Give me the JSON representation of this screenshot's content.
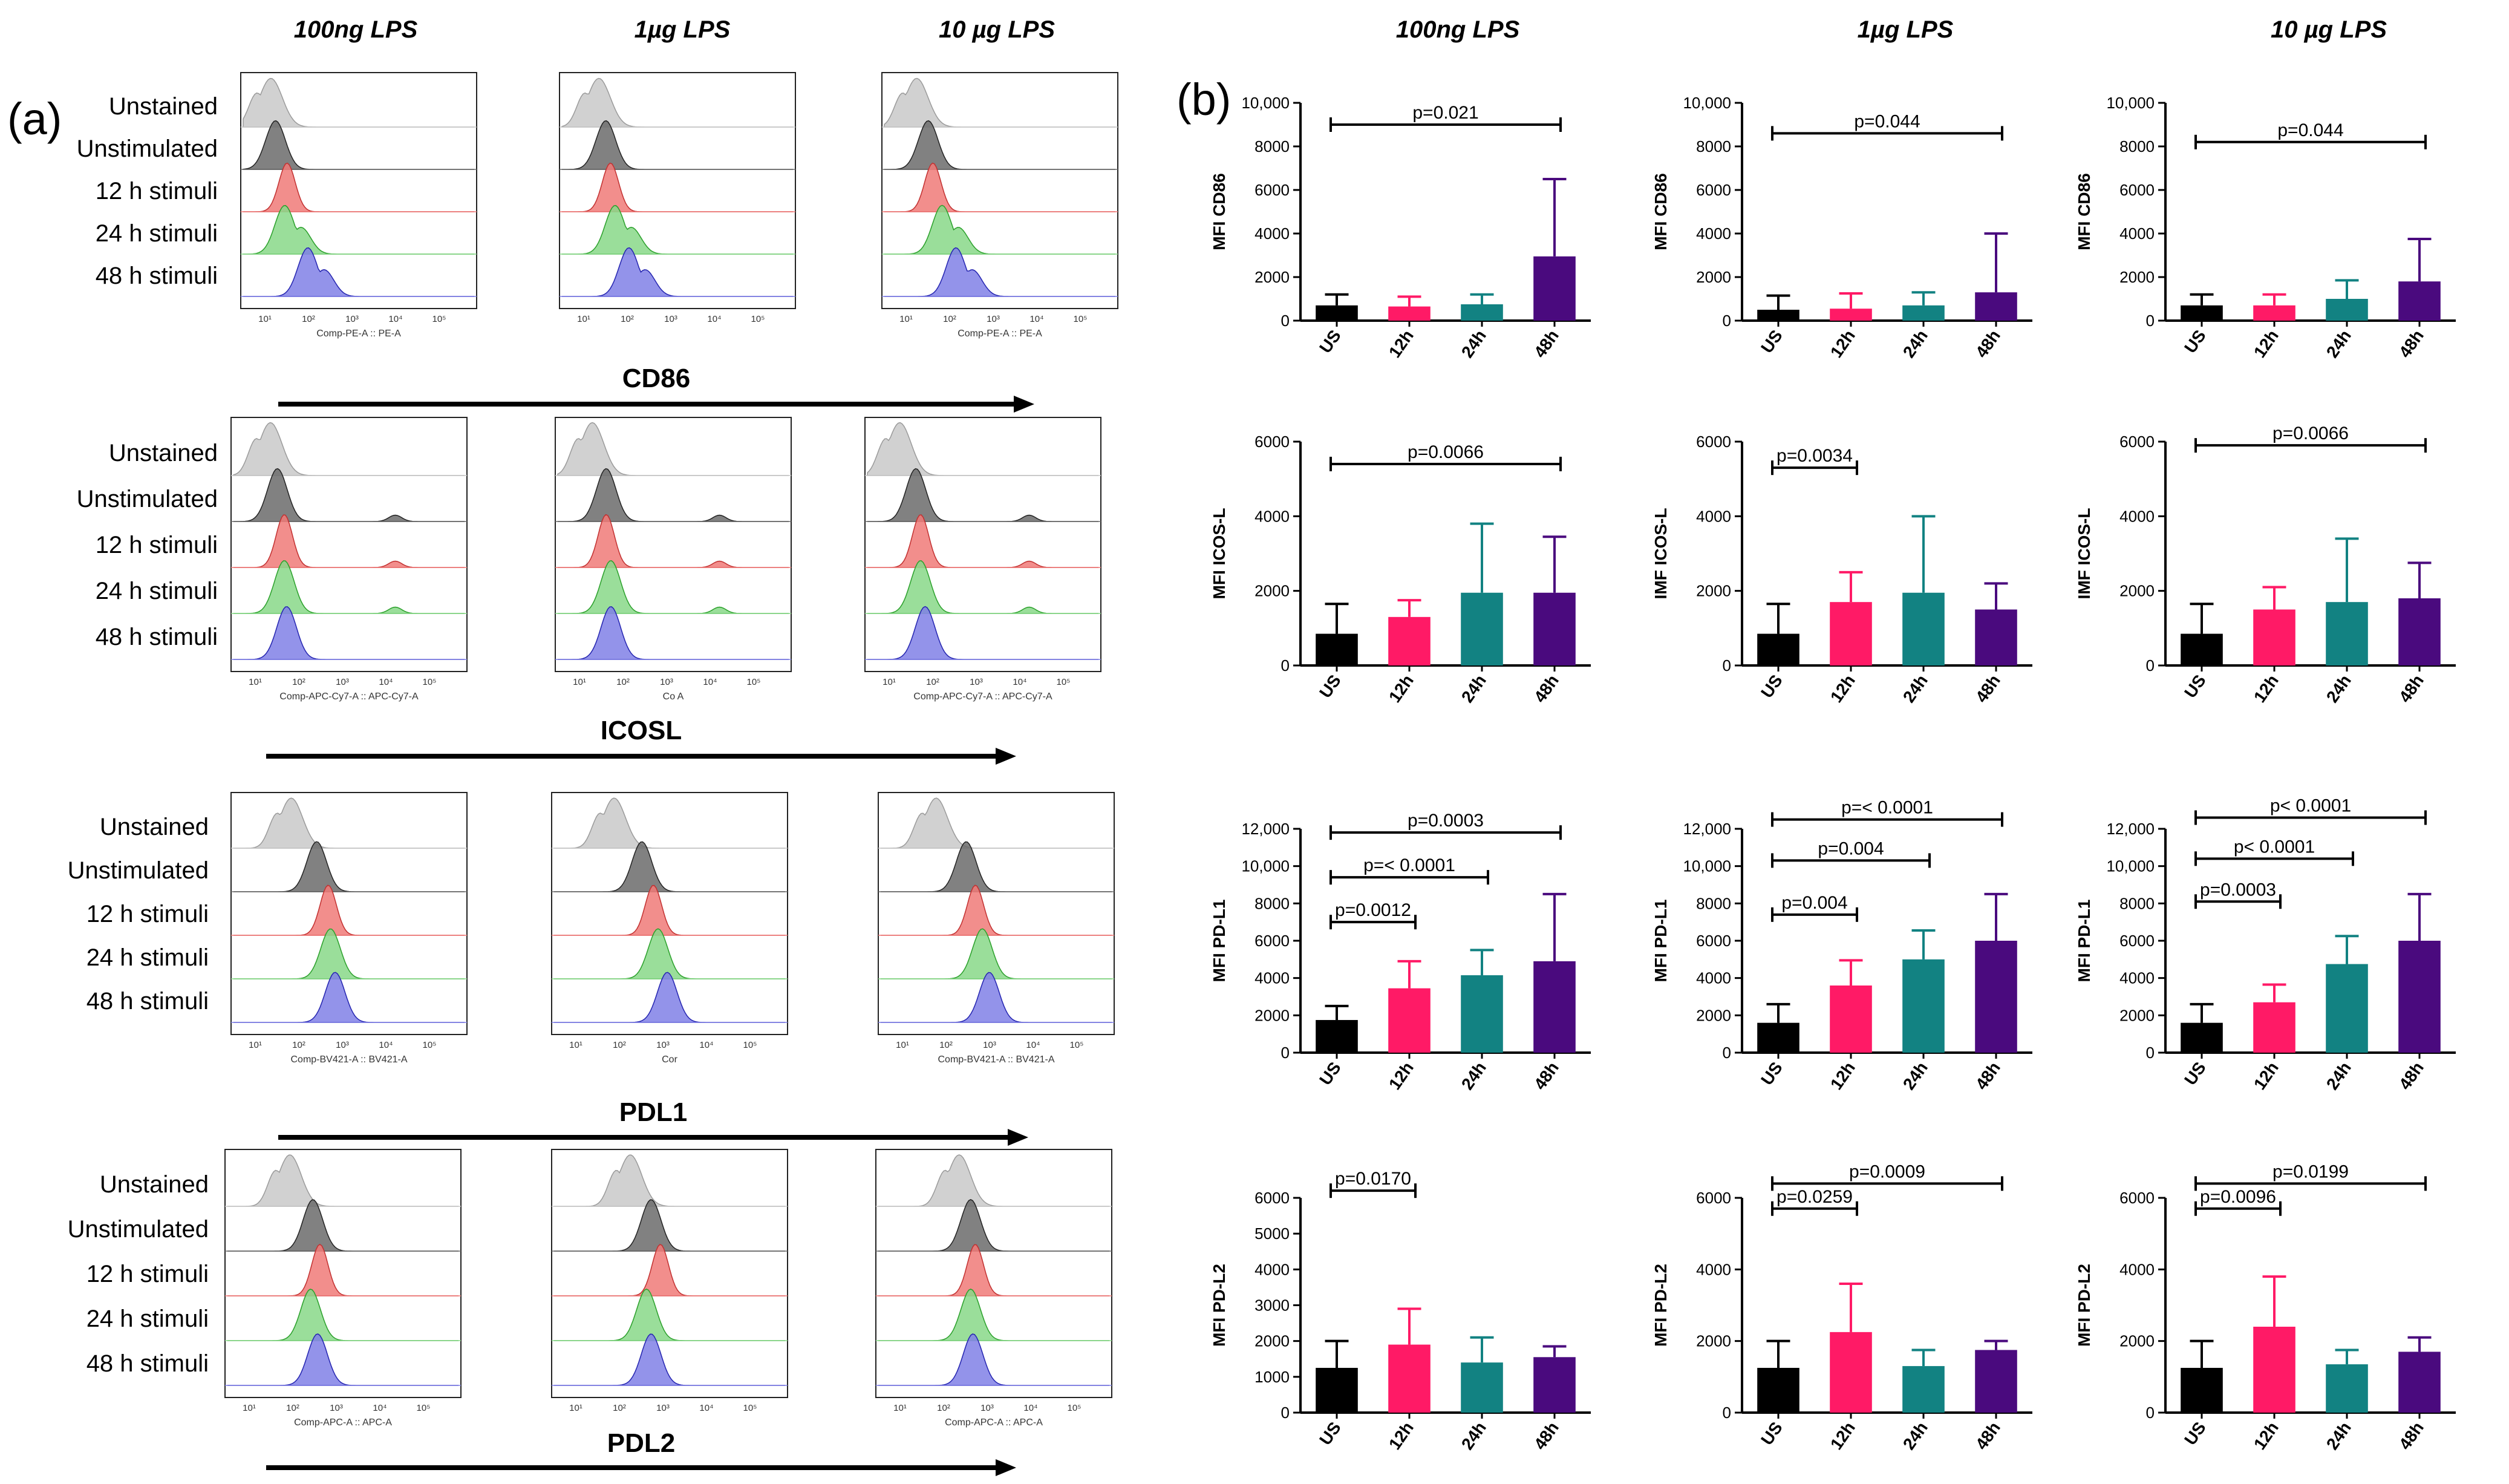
{
  "panel_labels": {
    "a": "(a)",
    "b": "(b)"
  },
  "column_headers": [
    "100ng LPS",
    "1µg LPS",
    "10 µg LPS"
  ],
  "colors": {
    "unstained": "#c9c9c9",
    "unstimulated": "#6b6b6b",
    "h12": "#f07a78",
    "h24": "#88d888",
    "h48": "#8080e6",
    "bar_US": "#000000",
    "bar_12h": "#ff1a66",
    "bar_24h": "#128282",
    "bar_48h": "#4a0a7e"
  },
  "histograms": {
    "row_labels": [
      "Unstained",
      "Unstimulated",
      "12 h stimuli",
      "24 h stimuli",
      "48 h stimuli"
    ],
    "markers": [
      {
        "name": "CD86",
        "axis_labels": [
          "Comp-PE-A :: PE-A",
          "",
          "Comp-PE-A :: PE-A"
        ]
      },
      {
        "name": "ICOSL",
        "axis_labels": [
          "Comp-APC-Cy7-A :: APC-Cy7-A",
          "Co                    A",
          "Comp-APC-Cy7-A :: APC-Cy7-A"
        ]
      },
      {
        "name": "PDL1",
        "axis_labels": [
          "Comp-BV421-A :: BV421-A",
          "Cor",
          "Comp-BV421-A :: BV421-A"
        ]
      },
      {
        "name": "PDL2",
        "axis_labels": [
          "Comp-APC-A :: APC-A",
          "",
          "Comp-APC-A :: APC-A"
        ]
      }
    ],
    "tick_labels": [
      "10¹",
      "10²",
      "10³",
      "10⁴",
      "10⁵"
    ]
  },
  "chart_data": [
    {
      "type": "bar",
      "id": "cd86-100ng",
      "ylabel": "MFI CD86",
      "categories": [
        "US",
        "12h",
        "24h",
        "48h"
      ],
      "values": [
        700,
        650,
        750,
        2950
      ],
      "errors": [
        500,
        450,
        450,
        3550
      ],
      "yticks": [
        0,
        2000,
        4000,
        6000,
        8000,
        10000
      ],
      "ytick_labels": [
        "0",
        "2000",
        "4000",
        "6000",
        "8000",
        "10,000"
      ],
      "ylim": [
        0,
        10000
      ],
      "annotations": [
        {
          "from": 0,
          "to": 3,
          "level": 9000,
          "label": "p=0.021"
        }
      ]
    },
    {
      "type": "bar",
      "id": "cd86-1ug",
      "ylabel": "MFI CD86",
      "categories": [
        "US",
        "12h",
        "24h",
        "48h"
      ],
      "values": [
        500,
        550,
        700,
        1300
      ],
      "errors": [
        650,
        700,
        600,
        2700
      ],
      "yticks": [
        0,
        2000,
        4000,
        6000,
        8000,
        10000
      ],
      "ytick_labels": [
        "0",
        "2000",
        "4000",
        "6000",
        "8000",
        "10,000"
      ],
      "ylim": [
        0,
        10000
      ],
      "annotations": [
        {
          "from": 0,
          "to": 3,
          "level": 8600,
          "label": "p=0.044"
        }
      ]
    },
    {
      "type": "bar",
      "id": "cd86-10ug",
      "ylabel": "MFI CD86",
      "categories": [
        "US",
        "12h",
        "24h",
        "48h"
      ],
      "values": [
        700,
        700,
        1000,
        1800
      ],
      "errors": [
        500,
        500,
        850,
        1950
      ],
      "yticks": [
        0,
        2000,
        4000,
        6000,
        8000,
        10000
      ],
      "ytick_labels": [
        "0",
        "2000",
        "4000",
        "6000",
        "8000",
        "10,000"
      ],
      "ylim": [
        0,
        10000
      ],
      "annotations": [
        {
          "from": 0,
          "to": 3,
          "level": 8200,
          "label": "p=0.044"
        }
      ]
    },
    {
      "type": "bar",
      "id": "icosl-100ng",
      "ylabel": "MFI ICOS-L",
      "categories": [
        "US",
        "12h",
        "24h",
        "48h"
      ],
      "values": [
        850,
        1300,
        1950,
        1950
      ],
      "errors": [
        800,
        450,
        1850,
        1500
      ],
      "yticks": [
        0,
        2000,
        4000,
        6000
      ],
      "ytick_labels": [
        "0",
        "2000",
        "4000",
        "6000"
      ],
      "ylim": [
        0,
        6000
      ],
      "annotations": [
        {
          "from": 0,
          "to": 3,
          "level": 5400,
          "label": "p=0.0066"
        }
      ]
    },
    {
      "type": "bar",
      "id": "icosl-1ug",
      "ylabel": "IMF ICOS-L",
      "categories": [
        "US",
        "12h",
        "24h",
        "48h"
      ],
      "values": [
        850,
        1700,
        1950,
        1500
      ],
      "errors": [
        800,
        800,
        2050,
        700
      ],
      "yticks": [
        0,
        2000,
        4000,
        6000
      ],
      "ytick_labels": [
        "0",
        "2000",
        "4000",
        "6000"
      ],
      "ylim": [
        0,
        6000
      ],
      "annotations": [
        {
          "from": 0,
          "to": 1,
          "level": 5300,
          "label": "p=0.0034"
        }
      ]
    },
    {
      "type": "bar",
      "id": "icosl-10ug",
      "ylabel": "IMF ICOS-L",
      "categories": [
        "US",
        "12h",
        "24h",
        "48h"
      ],
      "values": [
        850,
        1500,
        1700,
        1800
      ],
      "errors": [
        800,
        600,
        1700,
        950
      ],
      "yticks": [
        0,
        2000,
        4000,
        6000
      ],
      "ytick_labels": [
        "0",
        "2000",
        "4000",
        "6000"
      ],
      "ylim": [
        0,
        6000
      ],
      "annotations": [
        {
          "from": 0,
          "to": 3,
          "level": 5900,
          "label": "p=0.0066"
        }
      ]
    },
    {
      "type": "bar",
      "id": "pdl1-100ng",
      "ylabel": "MFI PD-L1",
      "categories": [
        "US",
        "12h",
        "24h",
        "48h"
      ],
      "values": [
        1750,
        3450,
        4150,
        4900
      ],
      "errors": [
        750,
        1450,
        1350,
        3600
      ],
      "yticks": [
        0,
        2000,
        4000,
        6000,
        8000,
        10000,
        12000
      ],
      "ytick_labels": [
        "0",
        "2000",
        "4000",
        "6000",
        "8000",
        "10,000",
        "12,000"
      ],
      "ylim": [
        0,
        12000
      ],
      "annotations": [
        {
          "from": 0,
          "to": 1,
          "level": 7000,
          "label": "p=0.0012"
        },
        {
          "from": 0,
          "to": 2,
          "level": 9400,
          "label": "p=< 0.0001"
        },
        {
          "from": 0,
          "to": 3,
          "level": 11800,
          "label": "p=0.0003"
        }
      ]
    },
    {
      "type": "bar",
      "id": "pdl1-1ug",
      "ylabel": "MFI PD-L1",
      "categories": [
        "US",
        "12h",
        "24h",
        "48h"
      ],
      "values": [
        1600,
        3600,
        5000,
        6000
      ],
      "errors": [
        1000,
        1350,
        1550,
        2500
      ],
      "yticks": [
        0,
        2000,
        4000,
        6000,
        8000,
        10000,
        12000
      ],
      "ytick_labels": [
        "0",
        "2000",
        "4000",
        "6000",
        "8000",
        "10,000",
        "12,000"
      ],
      "ylim": [
        0,
        12000
      ],
      "annotations": [
        {
          "from": 0,
          "to": 1,
          "level": 7400,
          "label": "p=0.004"
        },
        {
          "from": 0,
          "to": 2,
          "level": 10300,
          "label": "p=0.004"
        },
        {
          "from": 0,
          "to": 3,
          "level": 12500,
          "label": "p=< 0.0001"
        }
      ]
    },
    {
      "type": "bar",
      "id": "pdl1-10ug",
      "ylabel": "MFI PD-L1",
      "categories": [
        "US",
        "12h",
        "24h",
        "48h"
      ],
      "values": [
        1600,
        2700,
        4750,
        6000
      ],
      "errors": [
        1000,
        950,
        1500,
        2500
      ],
      "yticks": [
        0,
        2000,
        4000,
        6000,
        8000,
        10000,
        12000
      ],
      "ytick_labels": [
        "0",
        "2000",
        "4000",
        "6000",
        "8000",
        "10,000",
        "12,000"
      ],
      "ylim": [
        0,
        12000
      ],
      "annotations": [
        {
          "from": 0,
          "to": 1,
          "level": 8100,
          "label": "p=0.0003"
        },
        {
          "from": 0,
          "to": 2,
          "level": 10400,
          "label": "p< 0.0001"
        },
        {
          "from": 0,
          "to": 3,
          "level": 12600,
          "label": "p< 0.0001"
        }
      ]
    },
    {
      "type": "bar",
      "id": "pdl2-100ng",
      "ylabel": "MFI PD-L2",
      "categories": [
        "US",
        "12h",
        "24h",
        "48h"
      ],
      "values": [
        1250,
        1900,
        1400,
        1550
      ],
      "errors": [
        750,
        1000,
        700,
        300
      ],
      "yticks": [
        0,
        1000,
        2000,
        3000,
        4000,
        5000,
        6000
      ],
      "ytick_labels": [
        "0",
        "1000",
        "2000",
        "3000",
        "4000",
        "5000",
        "6000"
      ],
      "ylim": [
        0,
        6000
      ],
      "annotations": [
        {
          "from": 0,
          "to": 1,
          "level": 6200,
          "label": "p=0.0170"
        }
      ]
    },
    {
      "type": "bar",
      "id": "pdl2-1ug",
      "ylabel": "MFI PD-L2",
      "categories": [
        "US",
        "12h",
        "24h",
        "48h"
      ],
      "values": [
        1250,
        2250,
        1300,
        1750
      ],
      "errors": [
        750,
        1350,
        450,
        250
      ],
      "yticks": [
        0,
        2000,
        4000,
        6000
      ],
      "ytick_labels": [
        "0",
        "2000",
        "4000",
        "6000"
      ],
      "ylim": [
        0,
        6000
      ],
      "annotations": [
        {
          "from": 0,
          "to": 1,
          "level": 5700,
          "label": "p=0.0259"
        },
        {
          "from": 0,
          "to": 3,
          "level": 6400,
          "label": "p=0.0009"
        }
      ]
    },
    {
      "type": "bar",
      "id": "pdl2-10ug",
      "ylabel": "MFI PD-L2",
      "categories": [
        "US",
        "12h",
        "24h",
        "48h"
      ],
      "values": [
        1250,
        2400,
        1350,
        1700
      ],
      "errors": [
        750,
        1400,
        400,
        400
      ],
      "yticks": [
        0,
        2000,
        4000,
        6000
      ],
      "ytick_labels": [
        "0",
        "2000",
        "4000",
        "6000"
      ],
      "ylim": [
        0,
        6000
      ],
      "annotations": [
        {
          "from": 0,
          "to": 1,
          "level": 5700,
          "label": "p=0.0096"
        },
        {
          "from": 0,
          "to": 3,
          "level": 6400,
          "label": "p=0.0199"
        }
      ]
    }
  ]
}
